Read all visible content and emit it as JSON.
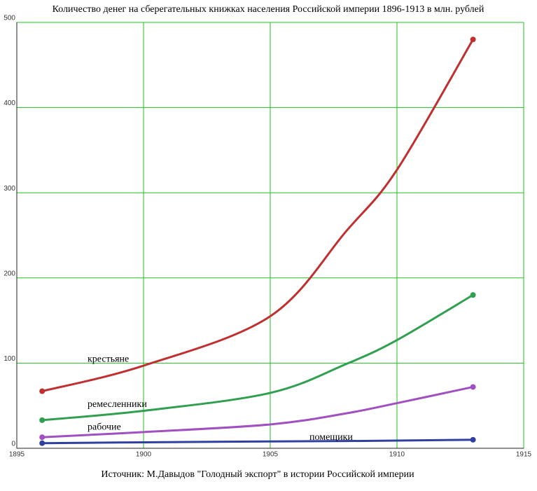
{
  "chart_data": {
    "type": "line",
    "title": "Количество денег на сберегательных книжках населения Российской империи 1896-1913 в млн. рублей",
    "source": "Источник:  М.Давыдов \"Голодный экспорт\" в истории Российской империи",
    "x": [
      1896,
      1900,
      1905,
      1908,
      1910,
      1913
    ],
    "series": [
      {
        "name": "крестьяне",
        "color": "#c03030",
        "values": [
          67,
          97,
          155,
          255,
          327,
          480
        ]
      },
      {
        "name": "ремесленники",
        "color": "#30a050",
        "values": [
          33,
          44,
          65,
          99,
          127,
          180
        ]
      },
      {
        "name": "рабочие",
        "color": "#a050c0",
        "values": [
          13,
          19,
          28,
          41,
          53,
          72
        ]
      },
      {
        "name": "помещики",
        "color": "#3040a0",
        "values": [
          6,
          7,
          8,
          8.5,
          9,
          10
        ]
      }
    ],
    "xlim": [
      1895,
      1915
    ],
    "xticks": [
      1895,
      1900,
      1905,
      1910,
      1915
    ],
    "ylim": [
      0,
      500
    ],
    "yticks": [
      0,
      100,
      200,
      300,
      400,
      500
    ],
    "grid": true
  }
}
